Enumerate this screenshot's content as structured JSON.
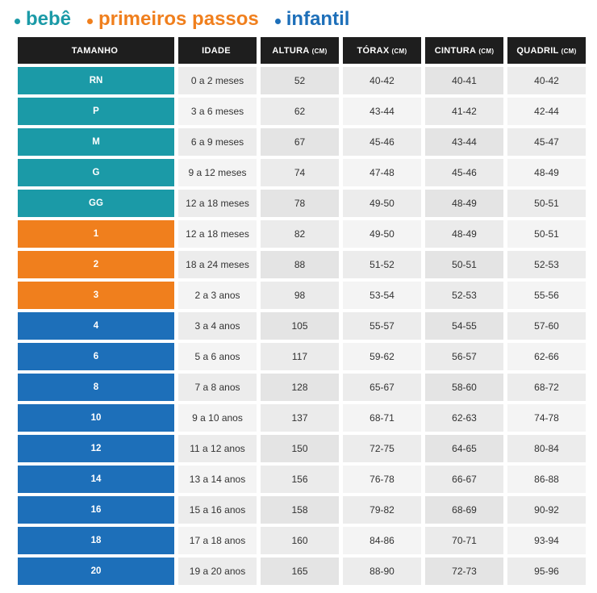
{
  "legend": [
    {
      "label": "bebê",
      "color": "#1b9aa7"
    },
    {
      "label": "primeiros passos",
      "color": "#f07f1d"
    },
    {
      "label": "infantil",
      "color": "#1d6fb9"
    }
  ],
  "table": {
    "headers": [
      {
        "label": "TAMANHO",
        "unit": ""
      },
      {
        "label": "IDADE",
        "unit": ""
      },
      {
        "label": "ALTURA",
        "unit": "(CM)"
      },
      {
        "label": "TÓRAX",
        "unit": "(CM)"
      },
      {
        "label": "CINTURA",
        "unit": "(CM)"
      },
      {
        "label": "QUADRIL",
        "unit": "(CM)"
      }
    ],
    "rows": [
      {
        "group": 0,
        "cells": [
          "RN",
          "0 a 2 meses",
          "52",
          "40-42",
          "40-41",
          "40-42"
        ]
      },
      {
        "group": 0,
        "cells": [
          "P",
          "3 a 6 meses",
          "62",
          "43-44",
          "41-42",
          "42-44"
        ]
      },
      {
        "group": 0,
        "cells": [
          "M",
          "6 a 9 meses",
          "67",
          "45-46",
          "43-44",
          "45-47"
        ]
      },
      {
        "group": 0,
        "cells": [
          "G",
          "9 a 12 meses",
          "74",
          "47-48",
          "45-46",
          "48-49"
        ]
      },
      {
        "group": 0,
        "cells": [
          "GG",
          "12 a 18 meses",
          "78",
          "49-50",
          "48-49",
          "50-51"
        ]
      },
      {
        "group": 1,
        "cells": [
          "1",
          "12 a 18 meses",
          "82",
          "49-50",
          "48-49",
          "50-51"
        ]
      },
      {
        "group": 1,
        "cells": [
          "2",
          "18 a 24 meses",
          "88",
          "51-52",
          "50-51",
          "52-53"
        ]
      },
      {
        "group": 1,
        "cells": [
          "3",
          "2 a 3 anos",
          "98",
          "53-54",
          "52-53",
          "55-56"
        ]
      },
      {
        "group": 2,
        "cells": [
          "4",
          "3 a 4 anos",
          "105",
          "55-57",
          "54-55",
          "57-60"
        ]
      },
      {
        "group": 2,
        "cells": [
          "6",
          "5 a 6 anos",
          "117",
          "59-62",
          "56-57",
          "62-66"
        ]
      },
      {
        "group": 2,
        "cells": [
          "8",
          "7 a 8 anos",
          "128",
          "65-67",
          "58-60",
          "68-72"
        ]
      },
      {
        "group": 2,
        "cells": [
          "10",
          "9 a 10 anos",
          "137",
          "68-71",
          "62-63",
          "74-78"
        ]
      },
      {
        "group": 2,
        "cells": [
          "12",
          "11 a 12 anos",
          "150",
          "72-75",
          "64-65",
          "80-84"
        ]
      },
      {
        "group": 2,
        "cells": [
          "14",
          "13 a 14 anos",
          "156",
          "76-78",
          "66-67",
          "86-88"
        ]
      },
      {
        "group": 2,
        "cells": [
          "16",
          "15 a 16 anos",
          "158",
          "79-82",
          "68-69",
          "90-92"
        ]
      },
      {
        "group": 2,
        "cells": [
          "18",
          "17 a 18 anos",
          "160",
          "84-86",
          "70-71",
          "93-94"
        ]
      },
      {
        "group": 2,
        "cells": [
          "20",
          "19 a 20 anos",
          "165",
          "88-90",
          "72-73",
          "95-96"
        ]
      }
    ]
  }
}
